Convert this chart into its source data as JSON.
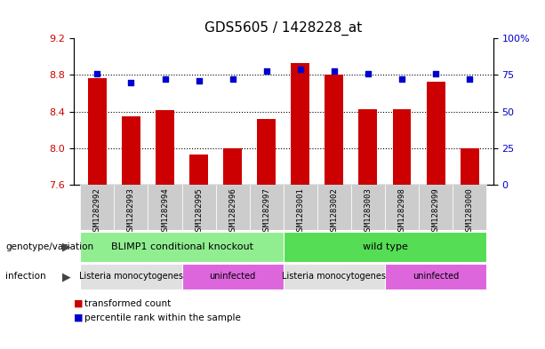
{
  "title": "GDS5605 / 1428228_at",
  "samples": [
    "GSM1282992",
    "GSM1282993",
    "GSM1282994",
    "GSM1282995",
    "GSM1282996",
    "GSM1282997",
    "GSM1283001",
    "GSM1283002",
    "GSM1283003",
    "GSM1282998",
    "GSM1282999",
    "GSM1283000"
  ],
  "transformed_counts": [
    8.77,
    8.35,
    8.42,
    7.93,
    8.0,
    8.32,
    8.93,
    8.8,
    8.43,
    8.43,
    8.73,
    8.0
  ],
  "percentile_ranks": [
    76,
    70,
    72,
    71,
    72,
    78,
    79,
    78,
    76,
    72,
    76,
    72
  ],
  "ylim_left": [
    7.6,
    9.2
  ],
  "ylim_right": [
    0,
    100
  ],
  "yticks_left": [
    7.6,
    8.0,
    8.4,
    8.8,
    9.2
  ],
  "yticks_right": [
    0,
    25,
    50,
    75,
    100
  ],
  "bar_color": "#cc0000",
  "dot_color": "#0000cc",
  "hgrid_ticks": [
    8.0,
    8.4,
    8.8
  ],
  "genotype_groups": [
    {
      "label": "BLIMP1 conditional knockout",
      "start": 0,
      "end": 6,
      "color": "#90ee90"
    },
    {
      "label": "wild type",
      "start": 6,
      "end": 12,
      "color": "#55dd55"
    }
  ],
  "infection_groups": [
    {
      "label": "Listeria monocytogenes",
      "start": 0,
      "end": 3,
      "color": "#e0e0e0"
    },
    {
      "label": "uninfected",
      "start": 3,
      "end": 6,
      "color": "#dd66dd"
    },
    {
      "label": "Listeria monocytogenes",
      "start": 6,
      "end": 9,
      "color": "#e0e0e0"
    },
    {
      "label": "uninfected",
      "start": 9,
      "end": 12,
      "color": "#dd66dd"
    }
  ],
  "tick_bg_color": "#cccccc",
  "label_genotype": "genotype/variation",
  "label_infection": "infection",
  "legend_bar_label": "transformed count",
  "legend_dot_label": "percentile rank within the sample"
}
